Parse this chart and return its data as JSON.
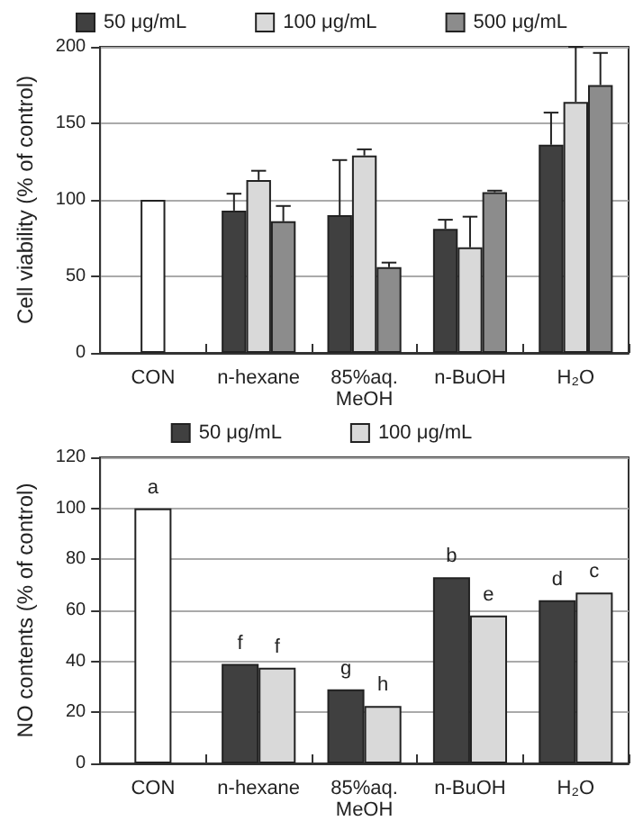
{
  "chart_data": [
    {
      "type": "bar",
      "ylabel": "Cell viability (% of control)",
      "categories": [
        "CON",
        "n-hexane",
        "85%aq.\nMeOH",
        "n-BuOH",
        "H₂O"
      ],
      "ylim": [
        0,
        200
      ],
      "yticks": [
        0,
        50,
        100,
        150,
        200
      ],
      "grid": "y",
      "legend": "top",
      "series": [
        {
          "color": "#ffffff",
          "values": [
            100,
            null,
            null,
            null,
            null
          ],
          "errors": [
            null,
            null,
            null,
            null,
            null
          ]
        },
        {
          "name": "50 μg/mL",
          "color": "#404040",
          "values": [
            null,
            93,
            90,
            81,
            136
          ],
          "errors": [
            null,
            [
              93,
              104
            ],
            [
              90,
              126
            ],
            [
              81,
              87
            ],
            [
              136,
              157
            ]
          ]
        },
        {
          "name": "100 μg/mL",
          "color": "#d9d9d9",
          "values": [
            null,
            113,
            129,
            69,
            164
          ],
          "errors": [
            null,
            [
              113,
              119
            ],
            [
              129,
              133
            ],
            [
              69,
              89
            ],
            [
              164,
              200
            ]
          ]
        },
        {
          "name": "500 μg/mL",
          "color": "#8c8c8c",
          "values": [
            null,
            86,
            56,
            105,
            175
          ],
          "errors": [
            null,
            [
              86,
              96
            ],
            [
              56,
              59
            ],
            [
              105,
              106
            ],
            [
              175,
              196
            ]
          ]
        }
      ]
    },
    {
      "type": "bar",
      "ylabel": "NO contents (% of control)",
      "categories": [
        "CON",
        "n-hexane",
        "85%aq.\nMeOH",
        "n-BuOH",
        "H₂O"
      ],
      "ylim": [
        0,
        120
      ],
      "yticks": [
        0,
        20,
        40,
        60,
        80,
        100,
        120
      ],
      "grid": "y",
      "legend": "top",
      "series": [
        {
          "color": "#ffffff",
          "values": [
            100,
            null,
            null,
            null,
            null
          ],
          "value_labels": [
            "a",
            null,
            null,
            null,
            null
          ]
        },
        {
          "name": "50 μg/mL",
          "color": "#404040",
          "values": [
            null,
            39,
            29,
            73,
            64
          ],
          "value_labels": [
            null,
            "f",
            "g",
            "b",
            "d"
          ]
        },
        {
          "name": "100 μg/mL",
          "color": "#d9d9d9",
          "values": [
            null,
            37.5,
            22.5,
            58,
            67
          ],
          "value_labels": [
            null,
            "f",
            "h",
            "e",
            "c"
          ]
        }
      ]
    }
  ]
}
